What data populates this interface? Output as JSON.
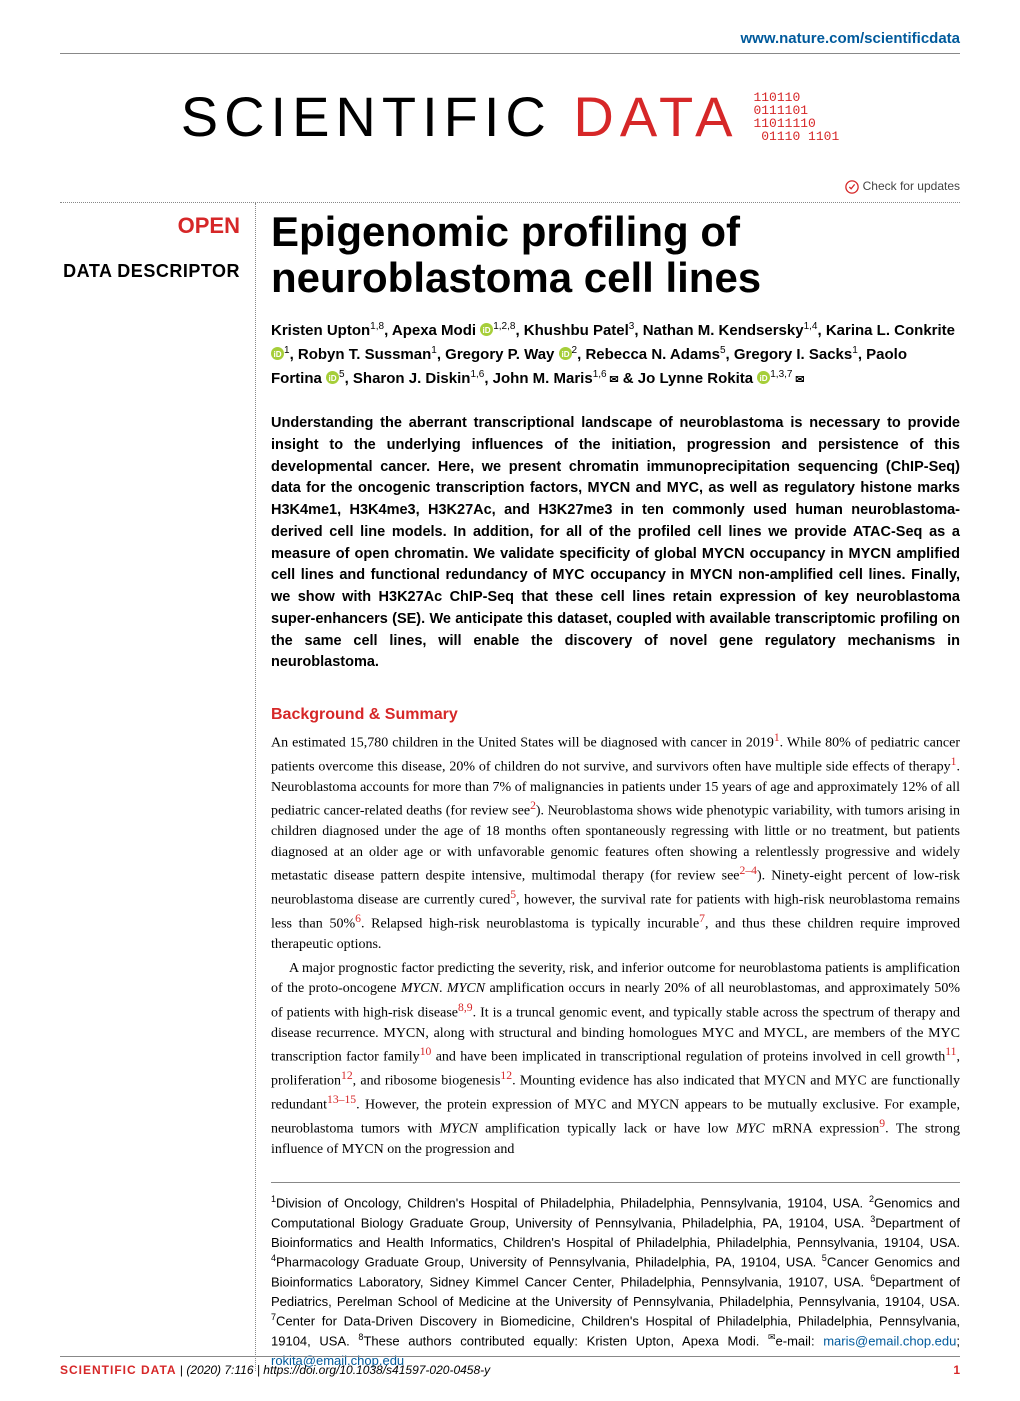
{
  "header": {
    "journal_url": "www.nature.com/scientificdata"
  },
  "logo": {
    "word1": "SCIENTIFIC",
    "word2": "DATA",
    "bits": "110110\n0111101\n11011110\n 01110 1101",
    "colors": {
      "scientific": "#000000",
      "data": "#d62728"
    }
  },
  "check_updates": "Check for updates",
  "badges": {
    "open": "OPEN",
    "doc_type": "DATA DESCRIPTOR"
  },
  "title": "Epigenomic profiling of neuroblastoma cell lines",
  "authors_html": "Kristen Upton<sup>1,8</sup>, Apexa Modi <svg class='orcid' viewBox='0 0 16 16'><circle cx='8' cy='8' r='8'/><text x='8' y='12' text-anchor='middle'>iD</text></svg><sup>1,2,8</sup>, Khushbu Patel<sup>3</sup>, Nathan M. Kendsersky<sup>1,4</sup>, Karina L. Conkrite <svg class='orcid' viewBox='0 0 16 16'><circle cx='8' cy='8' r='8'/><text x='8' y='12' text-anchor='middle'>iD</text></svg><sup>1</sup>, Robyn T. Sussman<sup>1</sup>, Gregory P. Way <svg class='orcid' viewBox='0 0 16 16'><circle cx='8' cy='8' r='8'/><text x='8' y='12' text-anchor='middle'>iD</text></svg><sup>2</sup>, Rebecca N. Adams<sup>5</sup>, Gregory I. Sacks<sup>1</sup>, Paolo Fortina <svg class='orcid' viewBox='0 0 16 16'><circle cx='8' cy='8' r='8'/><text x='8' y='12' text-anchor='middle'>iD</text></svg><sup>5</sup>, Sharon J. Diskin<sup>1,6</sup>, John M. Maris<sup>1,6 </sup><span class='envelope'>✉</span> &amp; Jo Lynne Rokita <svg class='orcid' viewBox='0 0 16 16'><circle cx='8' cy='8' r='8'/><text x='8' y='12' text-anchor='middle'>iD</text></svg><sup>1,3,7 </sup><span class='envelope'>✉</span>",
  "abstract": "Understanding the aberrant transcriptional landscape of neuroblastoma is necessary to provide insight to the underlying influences of the initiation, progression and persistence of this developmental cancer. Here, we present chromatin immunoprecipitation sequencing (ChIP-Seq) data for the oncogenic transcription factors, MYCN and MYC, as well as regulatory histone marks H3K4me1, H3K4me3, H3K27Ac, and H3K27me3 in ten commonly used human neuroblastoma-derived cell line models. In addition, for all of the profiled cell lines we provide ATAC-Seq as a measure of open chromatin. We validate specificity of global MYCN occupancy in MYCN amplified cell lines and functional redundancy of MYC occupancy in MYCN non-amplified cell lines. Finally, we show with H3K27Ac ChIP-Seq that these cell lines retain expression of key neuroblastoma super-enhancers (SE). We anticipate this dataset, coupled with available transcriptomic profiling on the same cell lines, will enable the discovery of novel gene regulatory mechanisms in neuroblastoma.",
  "section_heading": "Background & Summary",
  "para1": "An estimated 15,780 children in the United States will be diagnosed with cancer in 2019<sup class='ref-link'>1</sup>. While 80% of pediatric cancer patients overcome this disease, 20% of children do not survive, and survivors often have multiple side effects of therapy<sup class='ref-link'>1</sup>. Neuroblastoma accounts for more than 7% of malignancies in patients under 15 years of age and approximately 12% of all pediatric cancer-related deaths (for review see<sup class='ref-link'>2</sup>). Neuroblastoma shows wide phe­notypic variability, with tumors arising in children diagnosed under the age of 18 months often spontaneously regressing with little or no treatment, but patients diagnosed at an older age or with unfavorable genomic features often showing a relentlessly progressive and widely metastatic disease pattern despite intensive, multimodal ther­apy (for review see<sup class='ref-link'>2–4</sup>). Ninety-eight percent of low-risk neuroblastoma disease are currently cured<sup class='ref-link'>5</sup>, however, the survival rate for patients with high-risk neuroblastoma remains less than 50%<sup class='ref-link'>6</sup>. Relapsed high-risk neuroblastoma is typically incurable<sup class='ref-link'>7</sup>, and thus these children require improved therapeutic options.",
  "para2": "A major prognostic factor predicting the severity, risk, and inferior outcome for neuroblastoma patients is amplification of the proto-oncogene <span class='em'>MYCN</span>. <span class='em'>MYCN</span> amplification occurs in nearly 20% of all neuroblastomas, and approximately 50% of patients with high-risk disease<sup class='ref-link'>8,9</sup>. It is a truncal genomic event, and typically stable across the spectrum of therapy and disease recurrence. MYCN, along with structural and binding homologues MYC and MYCL, are members of the MYC transcription factor family<sup class='ref-link'>10</sup> and have been implicated in transcrip­tional regulation of proteins involved in cell growth<sup class='ref-link'>11</sup>, proliferation<sup class='ref-link'>12</sup>, and ribosome biogenesis<sup class='ref-link'>12</sup>. Mounting evi­dence has also indicated that MYCN and MYC are functionally redundant<sup class='ref-link'>13–15</sup>. However, the protein expression of MYC and MYCN appears to be mutually exclusive. For example, neuroblastoma tumors with <span class='em'>MYCN</span> amplifi­cation typically lack or have low <span class='em'>MYC</span> mRNA expression<sup class='ref-link'>9</sup>. The strong influence of MYCN on the progression and",
  "affiliations": "<sup>1</sup>Division of Oncology, Children's Hospital of Philadelphia, Philadelphia, Pennsylvania, 19104, USA. <sup>2</sup>Genomics and Computational Biology Graduate Group, University of Pennsylvania, Philadelphia, PA, 19104, USA. <sup>3</sup>Department of Bioinformatics and Health Informatics, Children's Hospital of Philadelphia, Philadelphia, Pennsylvania, 19104, USA. <sup>4</sup>Pharmacology Graduate Group, University of Pennsylvania, Philadelphia, PA, 19104, USA. <sup>5</sup>Cancer Genomics and Bioinformatics Laboratory, Sidney Kimmel Cancer Center, Philadelphia, Pennsylvania, 19107, USA. <sup>6</sup>Department of Pediatrics, Perelman School of Medicine at the University of Pennsylvania, Philadelphia, Pennsylvania, 19104, USA. <sup>7</sup>Center for Data-Driven Discovery in Biomedicine, Children's Hospital of Philadelphia, Philadelphia, Pennsylvania, 19104, USA. <sup>8</sup>These authors contributed equally: Kristen Upton, Apexa Modi. <sup>✉</sup>e-mail: <span class='email-link'>maris@email.chop.edu</span>; <span class='email-link'>rokita@email.chop.edu</span>",
  "footer": {
    "journal": "SCIENTIFIC DATA",
    "sep": " |",
    "citation": "(2020) 7:116  | https://doi.org/10.1038/s41597-020-0458-y",
    "page": "1"
  },
  "colors": {
    "accent_red": "#d62728",
    "link_blue": "#005a9c",
    "orcid_green": "#a6ce39",
    "grey": "#888888"
  }
}
